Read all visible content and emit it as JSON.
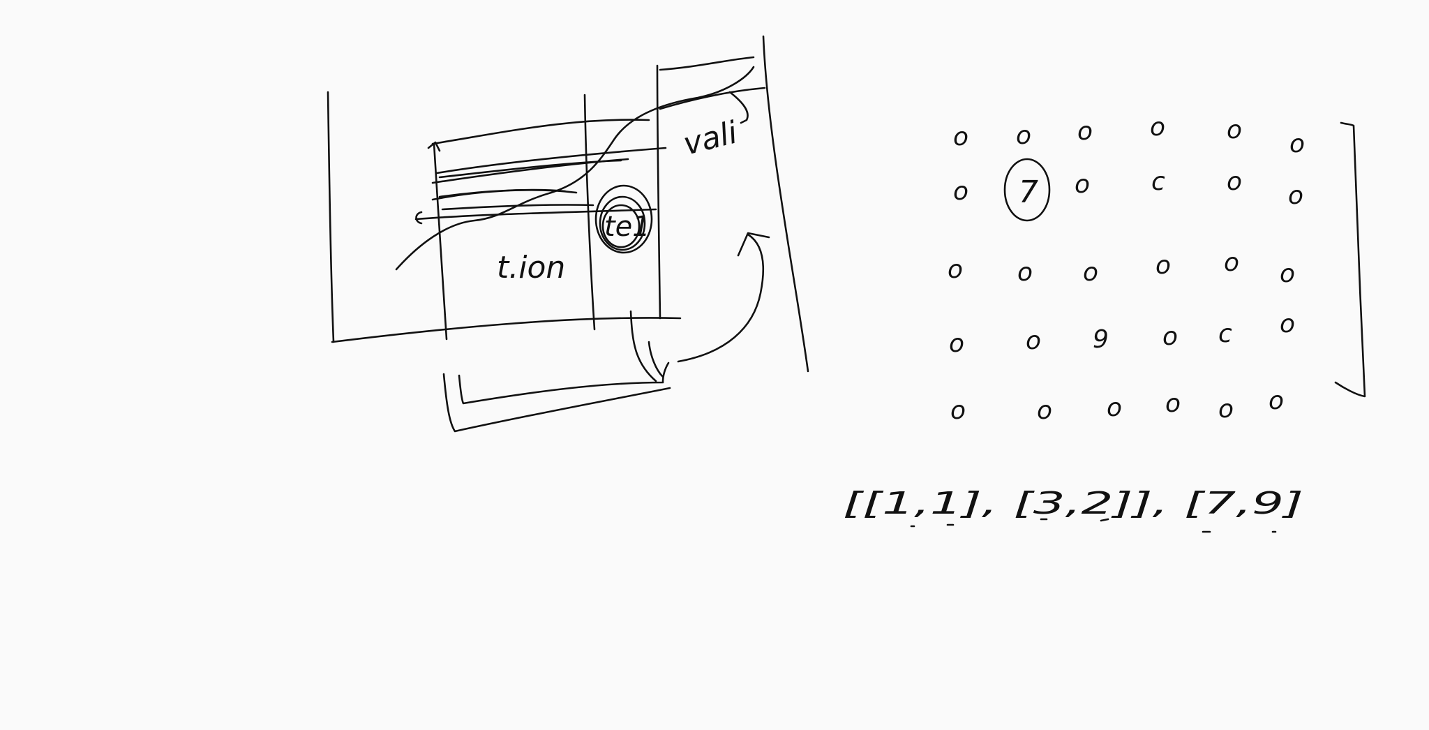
{
  "diagram": {
    "labels": {
      "train_split": "t.ion",
      "test_split": "te1",
      "validation_split": "vali"
    },
    "matrix": {
      "rows": [
        [
          "o",
          "o",
          "o",
          "o",
          "o",
          "o"
        ],
        [
          "o",
          "7",
          "o",
          "c",
          "o",
          "o"
        ],
        [
          "o",
          "o",
          "o",
          "o",
          "o",
          "o"
        ],
        [
          "o",
          "o",
          "9",
          "o",
          "c",
          "o"
        ],
        [
          "o",
          "o",
          "o",
          "o",
          "o",
          "o"
        ]
      ],
      "highlighted_value": "7"
    },
    "index_list": {
      "text": "[[1,1], [3,2]], [7,9]"
    }
  }
}
